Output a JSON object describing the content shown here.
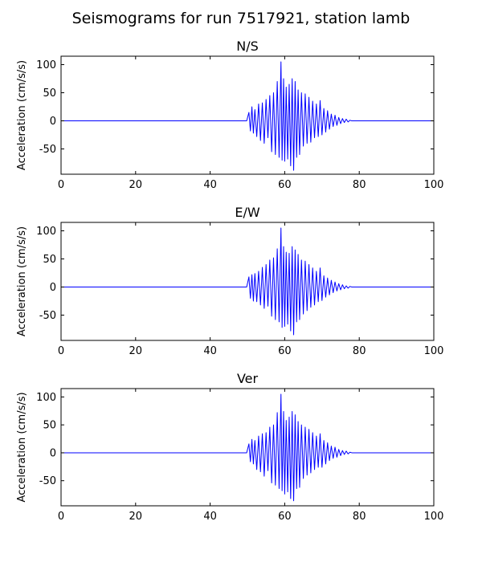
{
  "figure": {
    "title": "Seismograms for run 7517921, station lamb"
  },
  "colors": {
    "trace": "#0000ff",
    "axes": "#000000",
    "background": "#ffffff"
  },
  "chart_data": [
    {
      "type": "line",
      "title": "N/S",
      "xlabel": "",
      "ylabel": "Acceleration (cm/s/s)",
      "xlim": [
        0,
        100
      ],
      "ylim": [
        -95,
        115
      ],
      "xticks": [
        0,
        20,
        40,
        60,
        80,
        100
      ],
      "yticks": [
        -50,
        0,
        50,
        100
      ],
      "grid": false,
      "series": [
        {
          "x": [
            0,
            49.8,
            50.4,
            50.8,
            51.2,
            51.6,
            52.0,
            52.5,
            53.0,
            53.5,
            54.0,
            54.5,
            55.0,
            55.5,
            56.0,
            56.5,
            57.0,
            57.5,
            58.0,
            58.5,
            59.0,
            59.3,
            59.7,
            60.0,
            60.4,
            60.8,
            61.2,
            61.6,
            62.0,
            62.4,
            62.8,
            63.2,
            63.6,
            64.0,
            64.5,
            65.0,
            65.5,
            66.0,
            66.5,
            67.0,
            67.5,
            68.0,
            68.5,
            69.0,
            69.5,
            70.0,
            70.5,
            71.0,
            71.5,
            72.0,
            72.5,
            73.0,
            73.5,
            74.0,
            74.5,
            75.0,
            75.5,
            76.0,
            76.5,
            77.0,
            77.5,
            78.0,
            100
          ],
          "y": [
            0,
            0,
            15,
            -18,
            25,
            -22,
            20,
            -28,
            30,
            -35,
            32,
            -40,
            38,
            -30,
            45,
            -55,
            50,
            -60,
            70,
            -65,
            105,
            -70,
            75,
            -72,
            60,
            -68,
            65,
            -80,
            75,
            -88,
            70,
            -65,
            55,
            -60,
            50,
            -45,
            48,
            -40,
            42,
            -38,
            35,
            -30,
            30,
            -28,
            36,
            -25,
            22,
            -20,
            18,
            -15,
            12,
            -10,
            10,
            -8,
            6,
            -5,
            4,
            -3,
            3,
            -2,
            1,
            0,
            0
          ]
        }
      ]
    },
    {
      "type": "line",
      "title": "E/W",
      "xlabel": "",
      "ylabel": "Acceleration (cm/s/s)",
      "xlim": [
        0,
        100
      ],
      "ylim": [
        -95,
        115
      ],
      "xticks": [
        0,
        20,
        40,
        60,
        80,
        100
      ],
      "yticks": [
        -50,
        0,
        50,
        100
      ],
      "grid": false,
      "series": [
        {
          "x": [
            0,
            49.8,
            50.4,
            50.8,
            51.2,
            51.6,
            52.0,
            52.5,
            53.0,
            53.5,
            54.0,
            54.5,
            55.0,
            55.5,
            56.0,
            56.5,
            57.0,
            57.5,
            58.0,
            58.5,
            59.0,
            59.3,
            59.7,
            60.0,
            60.4,
            60.8,
            61.2,
            61.6,
            62.0,
            62.4,
            62.8,
            63.2,
            63.6,
            64.0,
            64.5,
            65.0,
            65.5,
            66.0,
            66.5,
            67.0,
            67.5,
            68.0,
            68.5,
            69.0,
            69.5,
            70.0,
            70.5,
            71.0,
            71.5,
            72.0,
            72.5,
            73.0,
            73.5,
            74.0,
            74.5,
            75.0,
            75.5,
            76.0,
            76.5,
            77.0,
            77.5,
            78.0,
            100
          ],
          "y": [
            0,
            0,
            18,
            -20,
            22,
            -25,
            24,
            -26,
            28,
            -32,
            35,
            -38,
            40,
            -34,
            48,
            -52,
            52,
            -58,
            68,
            -62,
            105,
            -72,
            72,
            -70,
            62,
            -66,
            60,
            -78,
            72,
            -85,
            66,
            -62,
            58,
            -58,
            48,
            -48,
            46,
            -42,
            40,
            -36,
            34,
            -32,
            28,
            -26,
            34,
            -24,
            20,
            -18,
            16,
            -14,
            12,
            -10,
            9,
            -7,
            6,
            -5,
            4,
            -3,
            2,
            -2,
            1,
            0,
            0
          ]
        }
      ]
    },
    {
      "type": "line",
      "title": "Ver",
      "xlabel": "",
      "ylabel": "Acceleration (cm/s/s)",
      "xlim": [
        0,
        100
      ],
      "ylim": [
        -95,
        115
      ],
      "xticks": [
        0,
        20,
        40,
        60,
        80,
        100
      ],
      "yticks": [
        -50,
        0,
        50,
        100
      ],
      "grid": false,
      "series": [
        {
          "x": [
            0,
            49.8,
            50.4,
            50.8,
            51.2,
            51.6,
            52.0,
            52.5,
            53.0,
            53.5,
            54.0,
            54.5,
            55.0,
            55.5,
            56.0,
            56.5,
            57.0,
            57.5,
            58.0,
            58.5,
            59.0,
            59.3,
            59.7,
            60.0,
            60.4,
            60.8,
            61.2,
            61.6,
            62.0,
            62.4,
            62.8,
            63.2,
            63.6,
            64.0,
            64.5,
            65.0,
            65.5,
            66.0,
            66.5,
            67.0,
            67.5,
            68.0,
            68.5,
            69.0,
            69.5,
            70.0,
            70.5,
            71.0,
            71.5,
            72.0,
            72.5,
            73.0,
            73.5,
            74.0,
            74.5,
            75.0,
            75.5,
            76.0,
            76.5,
            77.0,
            77.5,
            78.0,
            100
          ],
          "y": [
            0,
            0,
            16,
            -16,
            24,
            -20,
            22,
            -30,
            30,
            -34,
            34,
            -42,
            36,
            -32,
            46,
            -54,
            50,
            -58,
            72,
            -64,
            105,
            -68,
            74,
            -74,
            58,
            -70,
            64,
            -82,
            74,
            -86,
            68,
            -64,
            56,
            -62,
            50,
            -46,
            46,
            -40,
            42,
            -36,
            36,
            -30,
            30,
            -26,
            34,
            -26,
            22,
            -20,
            18,
            -14,
            12,
            -10,
            10,
            -8,
            6,
            -5,
            4,
            -3,
            3,
            -2,
            1,
            0,
            0
          ]
        }
      ]
    }
  ]
}
